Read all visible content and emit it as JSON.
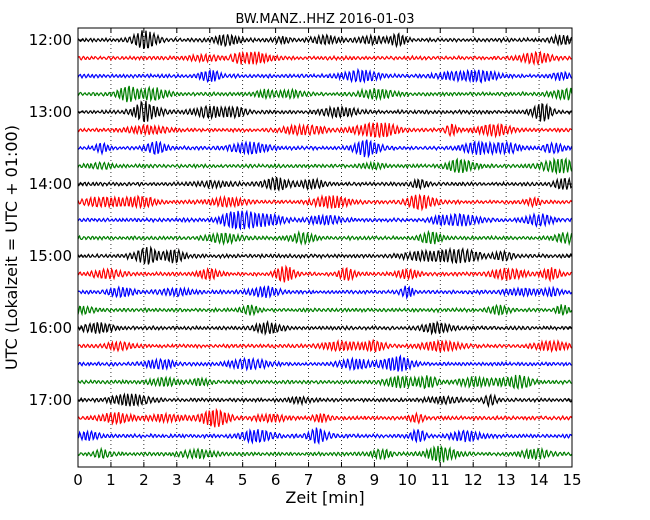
{
  "chart_data": {
    "type": "line",
    "title": "BW.MANZ..HHZ 2016-01-03",
    "xlabel": "Zeit  [min]",
    "ylabel": "UTC (Lokalzeit = UTC + 01:00)",
    "xlim": [
      0,
      15
    ],
    "x_ticks": [
      "0",
      "1",
      "2",
      "3",
      "4",
      "5",
      "6",
      "7",
      "8",
      "9",
      "10",
      "11",
      "12",
      "13",
      "14",
      "15"
    ],
    "y_tick_labels": [
      "12:00",
      "13:00",
      "14:00",
      "15:00",
      "16:00",
      "17:00"
    ],
    "trace_start": "12:00",
    "trace_interval_min": 15,
    "trace_count": 24,
    "colors": [
      "#000000",
      "#ff0000",
      "#0000ff",
      "#007f00"
    ],
    "grid": "vertical-dotted",
    "legend": "none"
  }
}
